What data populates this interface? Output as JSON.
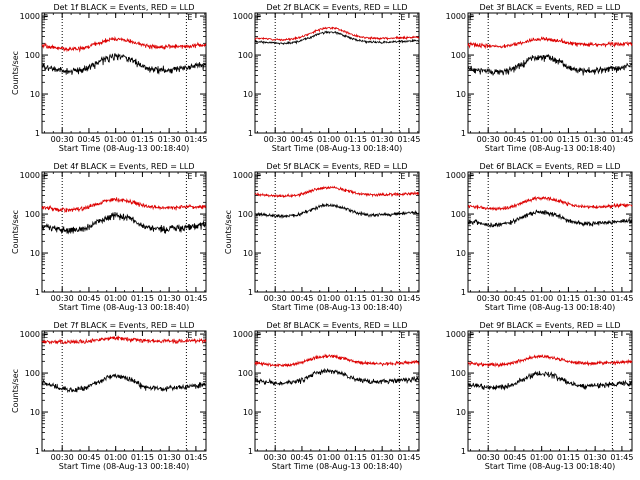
{
  "figure": {
    "x_tick_labels": [
      "00:30",
      "00:45",
      "01:00",
      "01:15",
      "01:30",
      "01:45"
    ],
    "x_label": "Start Time (08-Aug-13 00:18:40)",
    "y_label": "Counts/sec",
    "y_tick_labels": [
      "1",
      "10",
      "100",
      "1000"
    ],
    "marker_E": "E"
  },
  "chart_data": [
    {
      "type": "line",
      "title": "Det 1f BLACK = Events, RED = LLD",
      "xlabel": "Start Time (08-Aug-13 00:18:40)",
      "ylabel": "Counts/sec",
      "yscale": "log",
      "ylim": [
        1,
        1200
      ],
      "series": [
        {
          "name": "Events",
          "color": "#000000",
          "x_min": [
            0,
            5,
            10,
            15,
            20,
            25,
            30,
            35,
            40,
            45,
            50,
            55,
            60,
            65,
            70,
            75,
            80,
            85,
            90
          ],
          "values": [
            50,
            45,
            40,
            38,
            40,
            45,
            60,
            80,
            95,
            90,
            75,
            55,
            45,
            42,
            42,
            44,
            46,
            50,
            55
          ],
          "noise": 0.1
        },
        {
          "name": "LLD",
          "color": "#dd0000",
          "x_min": [
            0,
            5,
            10,
            15,
            20,
            25,
            30,
            35,
            40,
            45,
            50,
            55,
            60,
            65,
            70,
            75,
            80,
            85,
            90
          ],
          "values": [
            180,
            160,
            150,
            140,
            145,
            160,
            190,
            230,
            260,
            250,
            220,
            190,
            170,
            160,
            160,
            165,
            170,
            175,
            180
          ],
          "noise": 0.06
        }
      ]
    },
    {
      "type": "line",
      "title": "Det 2f BLACK = Events, RED = LLD",
      "xlabel": "Start Time (08-Aug-13 00:18:40)",
      "ylabel": "",
      "yscale": "log",
      "ylim": [
        1,
        1200
      ],
      "series": [
        {
          "name": "Events",
          "color": "#000000",
          "x_min": [
            0,
            5,
            10,
            15,
            20,
            25,
            30,
            35,
            40,
            45,
            50,
            55,
            60,
            65,
            70,
            75,
            80,
            85,
            90
          ],
          "values": [
            220,
            215,
            205,
            200,
            205,
            225,
            270,
            340,
            390,
            380,
            320,
            260,
            225,
            215,
            212,
            215,
            220,
            225,
            230
          ],
          "noise": 0.03
        },
        {
          "name": "LLD",
          "color": "#dd0000",
          "x_min": [
            0,
            5,
            10,
            15,
            20,
            25,
            30,
            35,
            40,
            45,
            50,
            55,
            60,
            65,
            70,
            75,
            80,
            85,
            90
          ],
          "values": [
            270,
            265,
            255,
            250,
            255,
            280,
            340,
            430,
            500,
            490,
            410,
            330,
            285,
            270,
            268,
            270,
            275,
            280,
            285
          ],
          "noise": 0.03
        }
      ]
    },
    {
      "type": "line",
      "title": "Det 3f BLACK = Events, RED = LLD",
      "xlabel": "Start Time (08-Aug-13 00:18:40)",
      "ylabel": "",
      "yscale": "log",
      "ylim": [
        1,
        1200
      ],
      "series": [
        {
          "name": "Events",
          "color": "#000000",
          "x_min": [
            0,
            5,
            10,
            15,
            20,
            25,
            30,
            35,
            40,
            45,
            50,
            55,
            60,
            65,
            70,
            75,
            80,
            85,
            90
          ],
          "values": [
            45,
            42,
            38,
            36,
            38,
            44,
            58,
            78,
            92,
            88,
            72,
            52,
            42,
            40,
            40,
            42,
            45,
            48,
            52
          ],
          "noise": 0.1
        },
        {
          "name": "LLD",
          "color": "#dd0000",
          "x_min": [
            0,
            5,
            10,
            15,
            20,
            25,
            30,
            35,
            40,
            45,
            50,
            55,
            60,
            65,
            70,
            75,
            80,
            85,
            90
          ],
          "values": [
            190,
            180,
            172,
            168,
            170,
            180,
            205,
            240,
            260,
            255,
            235,
            210,
            195,
            188,
            186,
            188,
            190,
            192,
            195
          ],
          "noise": 0.06
        }
      ]
    },
    {
      "type": "line",
      "title": "Det 4f BLACK = Events, RED = LLD",
      "xlabel": "Start Time (08-Aug-13 00:18:40)",
      "ylabel": "Counts/sec",
      "yscale": "log",
      "ylim": [
        1,
        1200
      ],
      "series": [
        {
          "name": "Events",
          "color": "#000000",
          "x_min": [
            0,
            5,
            10,
            15,
            20,
            25,
            30,
            35,
            40,
            45,
            50,
            55,
            60,
            65,
            70,
            75,
            80,
            85,
            90
          ],
          "values": [
            48,
            44,
            40,
            37,
            39,
            44,
            58,
            78,
            92,
            88,
            72,
            54,
            45,
            42,
            42,
            44,
            46,
            50,
            54
          ],
          "noise": 0.1
        },
        {
          "name": "LLD",
          "color": "#dd0000",
          "x_min": [
            0,
            5,
            10,
            15,
            20,
            25,
            30,
            35,
            40,
            45,
            50,
            55,
            60,
            65,
            70,
            75,
            80,
            85,
            90
          ],
          "values": [
            150,
            140,
            132,
            128,
            132,
            145,
            175,
            215,
            240,
            232,
            205,
            175,
            155,
            148,
            146,
            148,
            150,
            152,
            155
          ],
          "noise": 0.06
        }
      ]
    },
    {
      "type": "line",
      "title": "Det 5f BLACK = Events, RED = LLD",
      "xlabel": "Start Time (08-Aug-13 00:18:40)",
      "ylabel": "Counts/sec",
      "yscale": "log",
      "ylim": [
        1,
        1200
      ],
      "series": [
        {
          "name": "Events",
          "color": "#000000",
          "x_min": [
            0,
            5,
            10,
            15,
            20,
            25,
            30,
            35,
            40,
            45,
            50,
            55,
            60,
            65,
            70,
            75,
            80,
            85,
            90
          ],
          "values": [
            100,
            95,
            90,
            88,
            90,
            98,
            120,
            150,
            170,
            165,
            140,
            115,
            100,
            95,
            94,
            96,
            100,
            104,
            108
          ],
          "noise": 0.05
        },
        {
          "name": "LLD",
          "color": "#dd0000",
          "x_min": [
            0,
            5,
            10,
            15,
            20,
            25,
            30,
            35,
            40,
            45,
            50,
            55,
            60,
            65,
            70,
            75,
            80,
            85,
            90
          ],
          "values": [
            320,
            305,
            295,
            290,
            295,
            315,
            370,
            440,
            480,
            470,
            420,
            360,
            325,
            312,
            310,
            315,
            322,
            330,
            340
          ],
          "noise": 0.04
        }
      ]
    },
    {
      "type": "line",
      "title": "Det 6f BLACK = Events, RED = LLD",
      "xlabel": "Start Time (08-Aug-13 00:18:40)",
      "ylabel": "",
      "yscale": "log",
      "ylim": [
        1,
        1200
      ],
      "series": [
        {
          "name": "Events",
          "color": "#000000",
          "x_min": [
            0,
            5,
            10,
            15,
            20,
            25,
            30,
            35,
            40,
            45,
            50,
            55,
            60,
            65,
            70,
            75,
            80,
            85,
            90
          ],
          "values": [
            65,
            60,
            55,
            52,
            55,
            62,
            80,
            102,
            115,
            110,
            92,
            72,
            62,
            58,
            57,
            59,
            62,
            65,
            68
          ],
          "noise": 0.07
        },
        {
          "name": "LLD",
          "color": "#dd0000",
          "x_min": [
            0,
            5,
            10,
            15,
            20,
            25,
            30,
            35,
            40,
            45,
            50,
            55,
            60,
            65,
            70,
            75,
            80,
            85,
            90
          ],
          "values": [
            160,
            150,
            140,
            135,
            140,
            155,
            190,
            235,
            260,
            252,
            222,
            188,
            165,
            155,
            152,
            155,
            160,
            165,
            170
          ],
          "noise": 0.05
        }
      ]
    },
    {
      "type": "line",
      "title": "Det 7f BLACK = Events, RED = LLD",
      "xlabel": "Start Time (08-Aug-13 00:18:40)",
      "ylabel": "Counts/sec",
      "yscale": "log",
      "ylim": [
        1,
        1200
      ],
      "series": [
        {
          "name": "Events",
          "color": "#000000",
          "x_min": [
            0,
            5,
            10,
            15,
            20,
            25,
            30,
            35,
            40,
            45,
            50,
            55,
            60,
            65,
            70,
            75,
            80,
            85,
            90
          ],
          "values": [
            60,
            50,
            42,
            38,
            38,
            42,
            55,
            72,
            85,
            82,
            66,
            50,
            42,
            40,
            40,
            42,
            44,
            47,
            50
          ],
          "noise": 0.08
        },
        {
          "name": "LLD",
          "color": "#dd0000",
          "x_min": [
            0,
            5,
            10,
            15,
            20,
            25,
            30,
            35,
            40,
            45,
            50,
            55,
            60,
            65,
            70,
            75,
            80,
            85,
            90
          ],
          "values": [
            650,
            640,
            630,
            625,
            630,
            650,
            700,
            760,
            790,
            780,
            740,
            700,
            670,
            660,
            658,
            660,
            665,
            670,
            675
          ],
          "noise": 0.06
        }
      ]
    },
    {
      "type": "line",
      "title": "Det 8f BLACK = Events, RED = LLD",
      "xlabel": "Start Time (08-Aug-13 00:18:40)",
      "ylabel": "",
      "yscale": "log",
      "ylim": [
        1,
        1200
      ],
      "series": [
        {
          "name": "Events",
          "color": "#000000",
          "x_min": [
            0,
            5,
            10,
            15,
            20,
            25,
            30,
            35,
            40,
            45,
            50,
            55,
            60,
            65,
            70,
            75,
            80,
            85,
            90
          ],
          "values": [
            65,
            60,
            56,
            54,
            56,
            62,
            80,
            105,
            118,
            112,
            92,
            72,
            63,
            60,
            59,
            61,
            64,
            67,
            70
          ],
          "noise": 0.07
        },
        {
          "name": "LLD",
          "color": "#dd0000",
          "x_min": [
            0,
            5,
            10,
            15,
            20,
            25,
            30,
            35,
            40,
            45,
            50,
            55,
            60,
            65,
            70,
            75,
            80,
            85,
            90
          ],
          "values": [
            180,
            170,
            162,
            158,
            162,
            178,
            215,
            255,
            275,
            268,
            238,
            205,
            185,
            176,
            174,
            176,
            180,
            184,
            188
          ],
          "noise": 0.05
        }
      ]
    },
    {
      "type": "line",
      "title": "Det 9f BLACK = Events, RED = LLD",
      "xlabel": "Start Time (08-Aug-13 00:18:40)",
      "ylabel": "",
      "yscale": "log",
      "ylim": [
        1,
        1200
      ],
      "series": [
        {
          "name": "Events",
          "color": "#000000",
          "x_min": [
            0,
            5,
            10,
            15,
            20,
            25,
            30,
            35,
            40,
            45,
            50,
            55,
            60,
            65,
            70,
            75,
            80,
            85,
            90
          ],
          "values": [
            52,
            48,
            44,
            42,
            44,
            50,
            65,
            85,
            98,
            94,
            78,
            60,
            50,
            47,
            46,
            48,
            50,
            53,
            56
          ],
          "noise": 0.08
        },
        {
          "name": "LLD",
          "color": "#dd0000",
          "x_min": [
            0,
            5,
            10,
            15,
            20,
            25,
            30,
            35,
            40,
            45,
            50,
            55,
            60,
            65,
            70,
            75,
            80,
            85,
            90
          ],
          "values": [
            180,
            172,
            165,
            160,
            164,
            178,
            210,
            248,
            265,
            258,
            232,
            205,
            188,
            180,
            178,
            180,
            184,
            188,
            192
          ],
          "noise": 0.05
        }
      ]
    }
  ]
}
